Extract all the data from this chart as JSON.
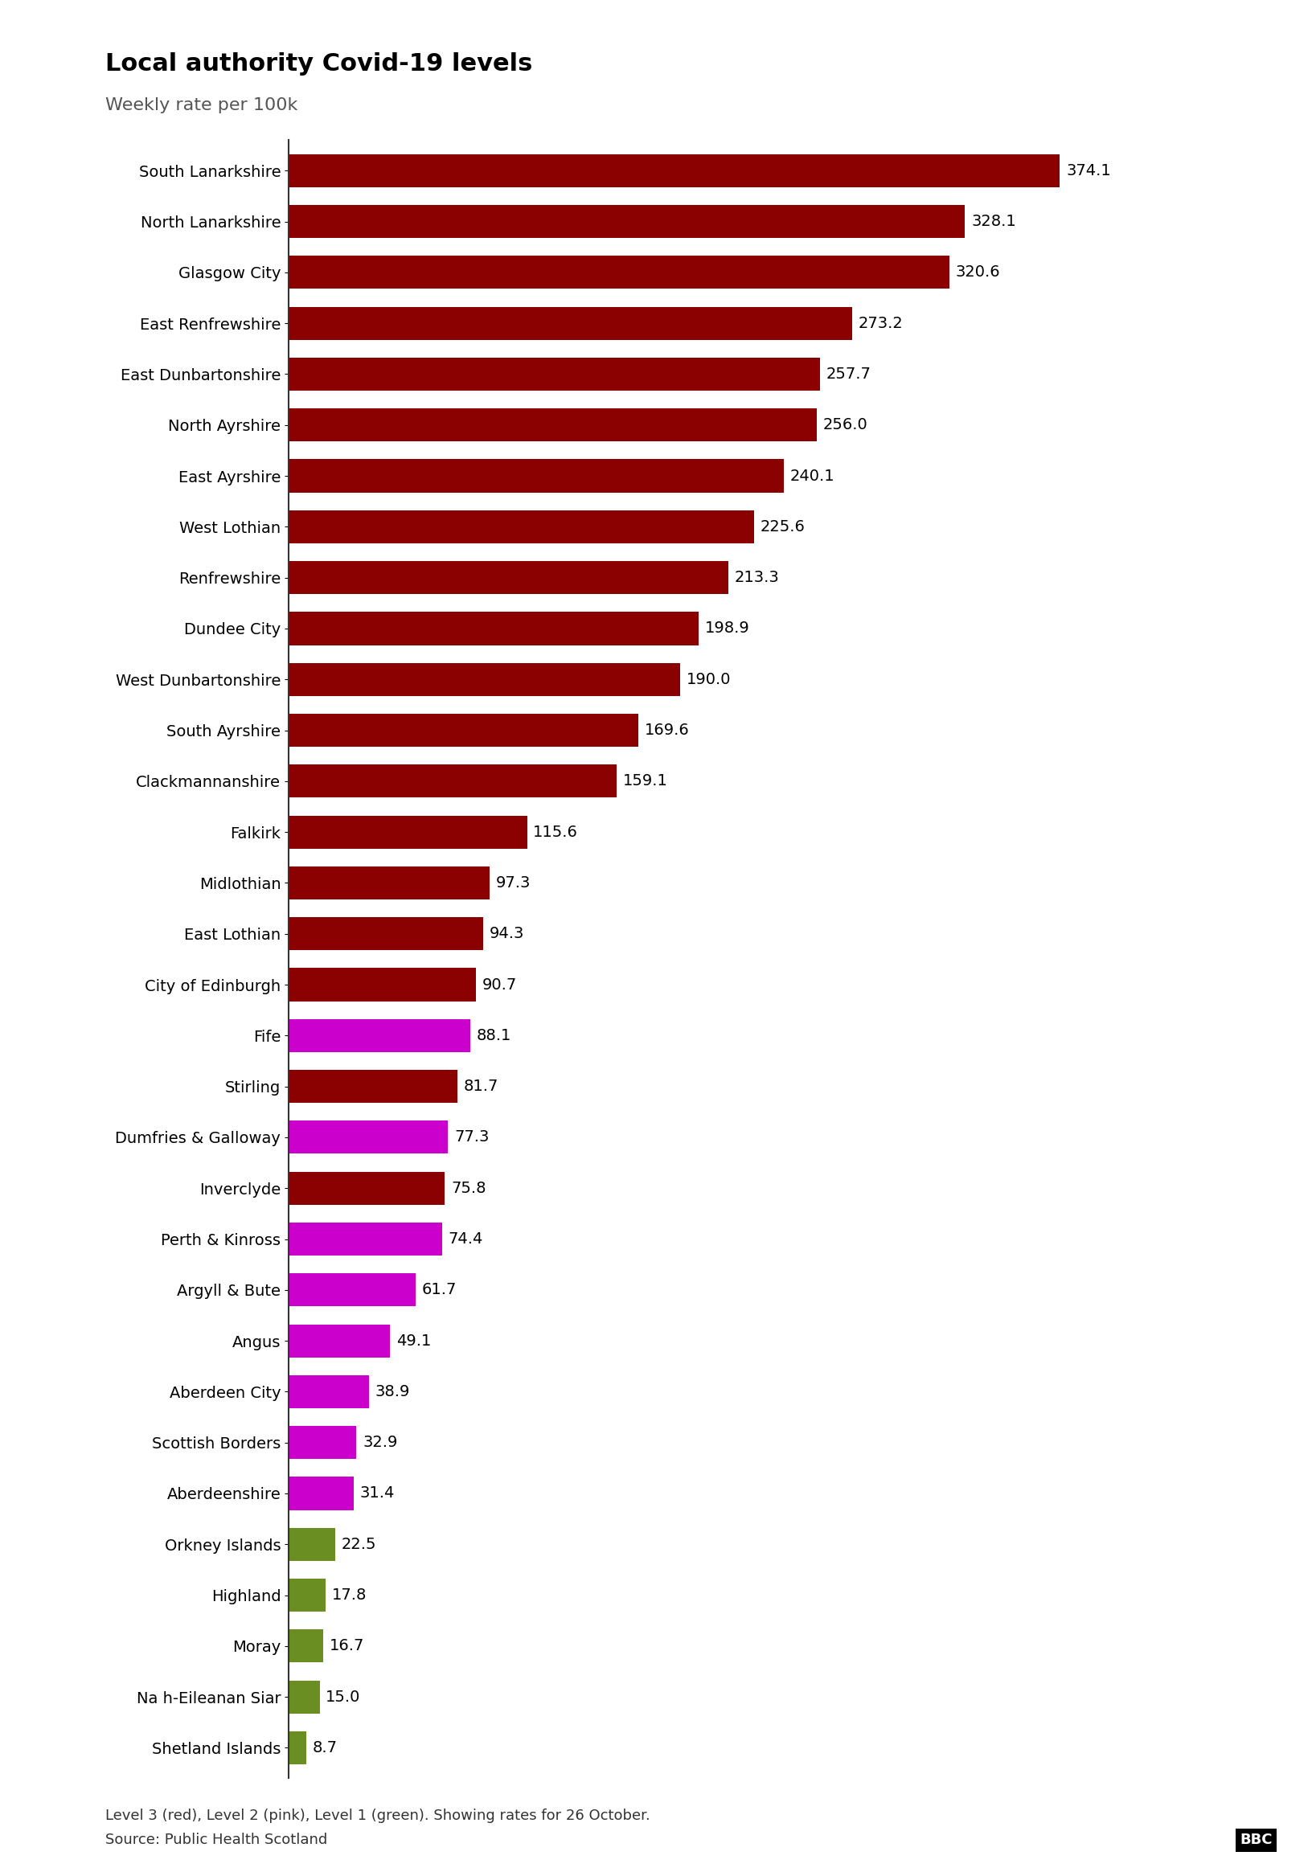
{
  "title": "Local authority Covid-19 levels",
  "subtitle": "Weekly rate per 100k",
  "footer": "Level 3 (red), Level 2 (pink), Level 1 (green). Showing rates for 26 October.",
  "source": "Source: Public Health Scotland",
  "categories": [
    "South Lanarkshire",
    "North Lanarkshire",
    "Glasgow City",
    "East Renfrewshire",
    "East Dunbartonshire",
    "North Ayrshire",
    "East Ayrshire",
    "West Lothian",
    "Renfrewshire",
    "Dundee City",
    "West Dunbartonshire",
    "South Ayrshire",
    "Clackmannanshire",
    "Falkirk",
    "Midlothian",
    "East Lothian",
    "City of Edinburgh",
    "Fife",
    "Stirling",
    "Dumfries & Galloway",
    "Inverclyde",
    "Perth & Kinross",
    "Argyll & Bute",
    "Angus",
    "Aberdeen City",
    "Scottish Borders",
    "Aberdeenshire",
    "Orkney Islands",
    "Highland",
    "Moray",
    "Na h-Eileanan Siar",
    "Shetland Islands"
  ],
  "values": [
    374.1,
    328.1,
    320.6,
    273.2,
    257.7,
    256.0,
    240.1,
    225.6,
    213.3,
    198.9,
    190.0,
    169.6,
    159.1,
    115.6,
    97.3,
    94.3,
    90.7,
    88.1,
    81.7,
    77.3,
    75.8,
    74.4,
    61.7,
    49.1,
    38.9,
    32.9,
    31.4,
    22.5,
    17.8,
    16.7,
    15.0,
    8.7
  ],
  "colors": [
    "#8B0000",
    "#8B0000",
    "#8B0000",
    "#8B0000",
    "#8B0000",
    "#8B0000",
    "#8B0000",
    "#8B0000",
    "#8B0000",
    "#8B0000",
    "#8B0000",
    "#8B0000",
    "#8B0000",
    "#8B0000",
    "#8B0000",
    "#8B0000",
    "#8B0000",
    "#CC00CC",
    "#8B0000",
    "#CC00CC",
    "#8B0000",
    "#CC00CC",
    "#CC00CC",
    "#CC00CC",
    "#CC00CC",
    "#CC00CC",
    "#CC00CC",
    "#6B8E23",
    "#6B8E23",
    "#6B8E23",
    "#6B8E23",
    "#6B8E23"
  ],
  "xlim": [
    0,
    420
  ],
  "bar_height": 0.65,
  "title_fontsize": 22,
  "subtitle_fontsize": 16,
  "label_fontsize": 14,
  "value_fontsize": 14,
  "footer_fontsize": 13,
  "bg_color": "#ffffff",
  "grid_color": "#cccccc"
}
